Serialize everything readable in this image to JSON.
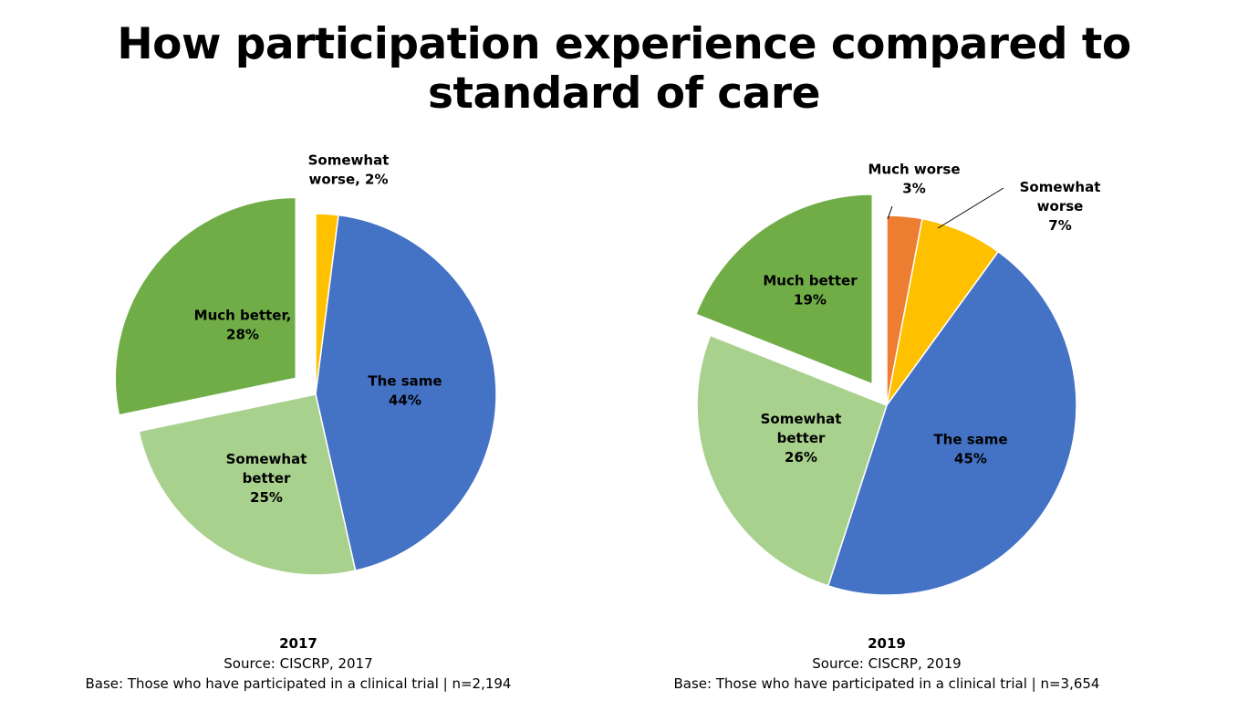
{
  "title": {
    "line1": "How participation experience compared to",
    "line2": "standard of care"
  },
  "colors": {
    "much_worse": "#ED7D31",
    "somewhat_worse": "#FFC000",
    "the_same": "#4472C4",
    "somewhat_better": "#A9D18E",
    "much_better": "#70AD47"
  },
  "chart_data": [
    {
      "type": "pie",
      "title": "2017",
      "source": "Source: CISCRP, 2017",
      "base": "Base: Those who have participated in a clinical trial | n=2,194",
      "slices": [
        {
          "key": "somewhat_worse",
          "label": [
            "Somewhat",
            "worse, 2%"
          ],
          "value": 2,
          "exploded": false
        },
        {
          "key": "the_same",
          "label": [
            "The same",
            "44%"
          ],
          "value": 44,
          "exploded": false
        },
        {
          "key": "somewhat_better",
          "label": [
            "Somewhat",
            "better",
            "25%"
          ],
          "value": 25,
          "exploded": false
        },
        {
          "key": "much_better",
          "label": [
            "Much better,",
            "28%"
          ],
          "value": 28,
          "exploded": true
        }
      ]
    },
    {
      "type": "pie",
      "title": "2019",
      "source": "Source: CISCRP, 2019",
      "base": "Base: Those who have participated in a clinical trial | n=3,654",
      "slices": [
        {
          "key": "much_worse",
          "label": [
            "Much worse",
            "3%"
          ],
          "value": 3,
          "exploded": false
        },
        {
          "key": "somewhat_worse",
          "label": [
            "Somewhat",
            "worse",
            "7%"
          ],
          "value": 7,
          "exploded": false
        },
        {
          "key": "the_same",
          "label": [
            "The same",
            "45%"
          ],
          "value": 45,
          "exploded": false
        },
        {
          "key": "somewhat_better",
          "label": [
            "Somewhat",
            "better",
            "26%"
          ],
          "value": 26,
          "exploded": false
        },
        {
          "key": "much_better",
          "label": [
            "Much better",
            "19%"
          ],
          "value": 19,
          "exploded": true
        }
      ]
    }
  ]
}
